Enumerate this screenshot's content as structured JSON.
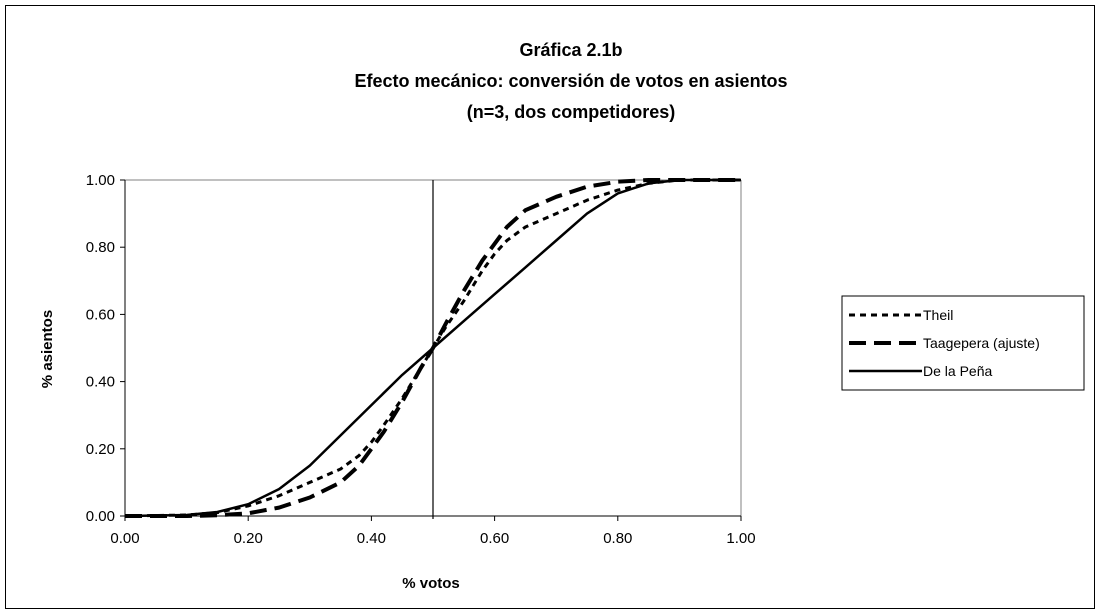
{
  "chart_data": {
    "type": "line",
    "title": [
      "Gráfica 2.1b",
      "Efecto mecánico: conversión de votos en asientos",
      "(n=3, dos competidores)"
    ],
    "xlabel": "% votos",
    "ylabel": "% asientos",
    "xlim": [
      0,
      1
    ],
    "ylim": [
      0,
      1
    ],
    "xticks": [
      "0.00",
      "0.20",
      "0.40",
      "0.60",
      "0.80",
      "1.00"
    ],
    "yticks": [
      "0.00",
      "0.20",
      "0.40",
      "0.60",
      "0.80",
      "1.00"
    ],
    "xtick_values": [
      0,
      0.2,
      0.4,
      0.6,
      0.8,
      1.0
    ],
    "ytick_values": [
      0,
      0.2,
      0.4,
      0.6,
      0.8,
      1.0
    ],
    "vertical_line_x": 0.5,
    "legend_position": "right",
    "series": [
      {
        "name": "Theil",
        "style": "dotted",
        "x": [
          0.0,
          0.1,
          0.15,
          0.2,
          0.25,
          0.3,
          0.35,
          0.38,
          0.4,
          0.42,
          0.45,
          0.48,
          0.5,
          0.52,
          0.55,
          0.58,
          0.6,
          0.62,
          0.65,
          0.7,
          0.75,
          0.8,
          0.85,
          0.9,
          1.0
        ],
        "y": [
          0.0,
          0.003,
          0.01,
          0.03,
          0.06,
          0.1,
          0.14,
          0.18,
          0.22,
          0.27,
          0.35,
          0.44,
          0.5,
          0.56,
          0.64,
          0.73,
          0.78,
          0.82,
          0.86,
          0.9,
          0.94,
          0.97,
          0.99,
          1.0,
          1.0
        ]
      },
      {
        "name": "Taagepera (ajuste)",
        "style": "dashed",
        "x": [
          0.0,
          0.1,
          0.15,
          0.2,
          0.25,
          0.3,
          0.35,
          0.38,
          0.4,
          0.42,
          0.45,
          0.48,
          0.5,
          0.52,
          0.55,
          0.58,
          0.6,
          0.62,
          0.65,
          0.7,
          0.75,
          0.8,
          0.85,
          0.9,
          1.0
        ],
        "y": [
          0.0,
          0.0,
          0.002,
          0.008,
          0.025,
          0.055,
          0.1,
          0.15,
          0.2,
          0.25,
          0.34,
          0.44,
          0.5,
          0.57,
          0.67,
          0.76,
          0.81,
          0.86,
          0.91,
          0.95,
          0.98,
          0.995,
          1.0,
          1.0,
          1.0
        ]
      },
      {
        "name": "De la Peña",
        "style": "solid",
        "x": [
          0.0,
          0.1,
          0.15,
          0.2,
          0.25,
          0.3,
          0.35,
          0.4,
          0.45,
          0.5,
          0.55,
          0.6,
          0.65,
          0.7,
          0.75,
          0.8,
          0.85,
          0.9,
          1.0
        ],
        "y": [
          0.0,
          0.003,
          0.012,
          0.035,
          0.08,
          0.15,
          0.24,
          0.33,
          0.42,
          0.5,
          0.58,
          0.66,
          0.74,
          0.82,
          0.9,
          0.96,
          0.99,
          1.0,
          1.0
        ]
      }
    ]
  }
}
